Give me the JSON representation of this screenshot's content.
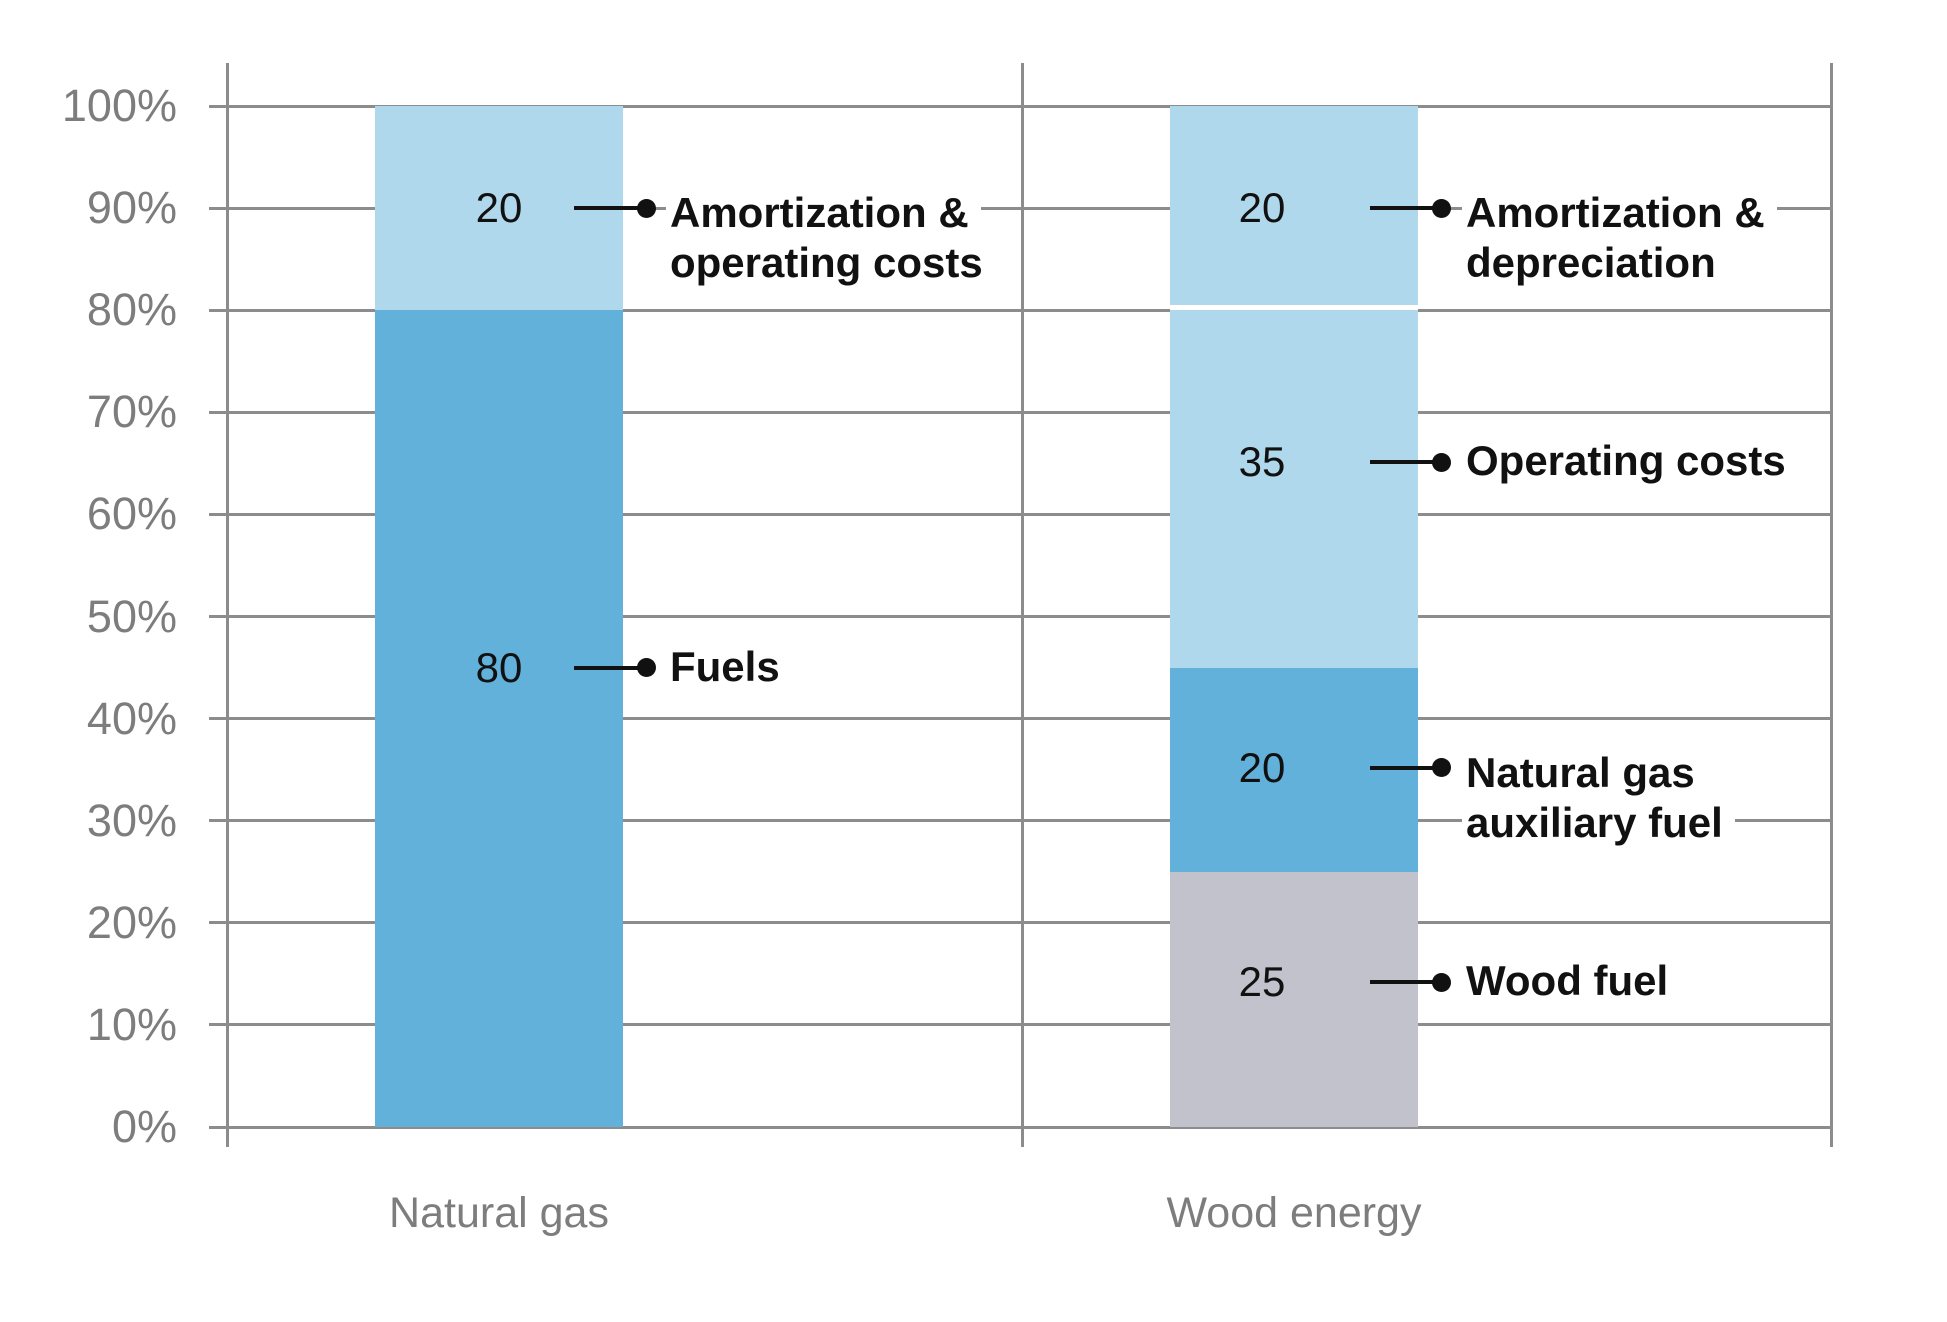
{
  "chart_data": {
    "type": "bar",
    "stacked": true,
    "unit": "percent",
    "title": "",
    "xlabel": "",
    "ylabel": "",
    "ylim": [
      0,
      100
    ],
    "ytick_step": 10,
    "ytick_labels": [
      "0%",
      "10%",
      "20%",
      "30%",
      "40%",
      "50%",
      "60%",
      "70%",
      "80%",
      "90%",
      "100%"
    ],
    "grid": "horizontal",
    "legend": "none",
    "categories": [
      "Natural gas",
      "Wood energy"
    ],
    "bars": [
      {
        "category": "Natural gas",
        "segments": [
          {
            "label": "Fuels",
            "label_lines": [
              "Fuels"
            ],
            "value": 80,
            "color": "#62b1db",
            "annotation_level": 45,
            "divider_bottom": false
          },
          {
            "label": "Amortization & operating costs",
            "label_lines": [
              "Amortization &",
              "operating costs"
            ],
            "value": 20,
            "color": "#b0d8ec",
            "annotation_level": 90,
            "divider_bottom": false
          }
        ]
      },
      {
        "category": "Wood energy",
        "segments": [
          {
            "label": "Wood fuel",
            "label_lines": [
              "Wood fuel"
            ],
            "value": 25,
            "color": "#c1c2cc",
            "annotation_level": 14.2,
            "divider_bottom": false
          },
          {
            "label": "Natural gas auxiliary fuel",
            "label_lines": [
              "Natural gas",
              "auxiliary fuel"
            ],
            "value": 20,
            "color": "#62b1db",
            "annotation_level": 35.2,
            "divider_bottom": false
          },
          {
            "label": "Operating costs",
            "label_lines": [
              "Operating costs"
            ],
            "value": 35,
            "color": "#b0d8ec",
            "annotation_level": 65.1,
            "divider_bottom": false
          },
          {
            "label": "Amortization & depreciation",
            "label_lines": [
              "Amortization &",
              "depreciation"
            ],
            "value": 20,
            "color": "#b0d8ec",
            "annotation_level": 90,
            "divider_bottom": true
          }
        ]
      }
    ],
    "colors": {
      "grid": "#8c8c8c",
      "axis_text": "#7d7d7d",
      "category_text": "#7d7d7d",
      "annotation_text": "#111111",
      "leader": "#111111",
      "segment_divider": "#ffffff",
      "background": "#ffffff"
    }
  }
}
